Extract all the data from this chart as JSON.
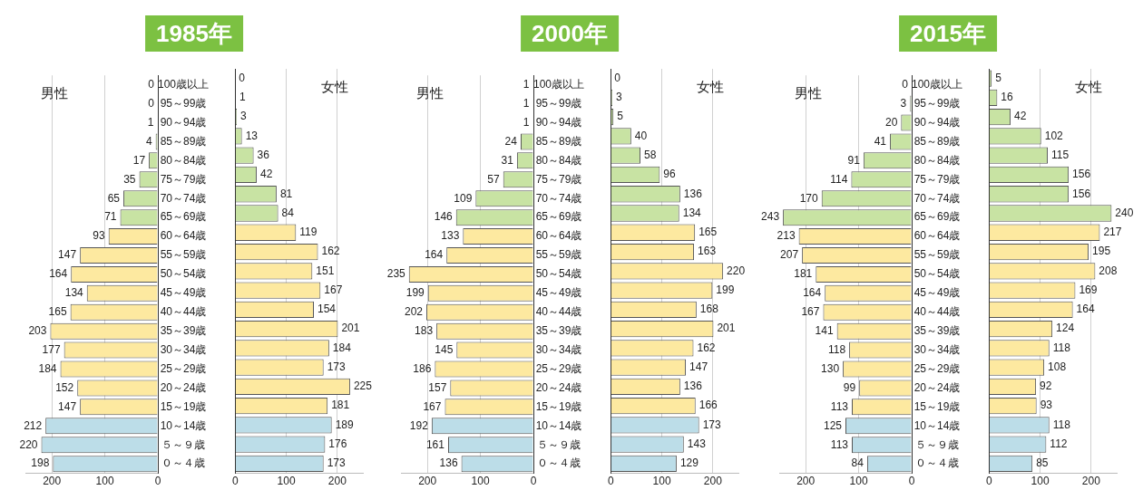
{
  "chart_data": [
    {
      "type": "bar",
      "orientation": "horizontal",
      "title": "1985年",
      "categories": [
        "100歳以上",
        "95～99歳",
        "90～94歳",
        "85～89歳",
        "80～84歳",
        "75～79歳",
        "70～74歳",
        "65～69歳",
        "60～64歳",
        "55～59歳",
        "50～54歳",
        "45～49歳",
        "40～44歳",
        "35～39歳",
        "30～34歳",
        "25～29歳",
        "20～24歳",
        "15～19歳",
        "10～14歳",
        "５～９歳",
        "０～４歳"
      ],
      "series": [
        {
          "name": "男性",
          "values": [
            0,
            0,
            1,
            4,
            17,
            35,
            65,
            71,
            93,
            147,
            164,
            134,
            165,
            203,
            177,
            184,
            152,
            147,
            212,
            220,
            198
          ],
          "colors": [
            "#c8e3a3",
            "#c8e3a3",
            "#c8e3a3",
            "#c8e3a3",
            "#c8e3a3",
            "#c8e3a3",
            "#c8e3a3",
            "#c8e3a3",
            "#fde9a0",
            "#fde9a0",
            "#fde9a0",
            "#fde9a0",
            "#fde9a0",
            "#fde9a0",
            "#fde9a0",
            "#fde9a0",
            "#fde9a0",
            "#fde9a0",
            "#bcdde8",
            "#bcdde8",
            "#bcdde8"
          ]
        }
      ],
      "xlim": [
        250,
        0
      ],
      "xticks": [
        200,
        100,
        0
      ],
      "grid": "x",
      "data_labels": true
    },
    {
      "type": "bar",
      "orientation": "horizontal",
      "categories": [
        null,
        null,
        null,
        null,
        null,
        null,
        null,
        null,
        null,
        null,
        null,
        null,
        null,
        null,
        null,
        null,
        null,
        null,
        null,
        null,
        null
      ],
      "series": [
        {
          "name": "女性",
          "values": [
            0,
            1,
            3,
            13,
            36,
            42,
            81,
            84,
            119,
            162,
            151,
            167,
            154,
            201,
            184,
            173,
            225,
            181,
            189,
            176,
            173
          ],
          "colors": [
            "#c8e3a3",
            "#c8e3a3",
            "#c8e3a3",
            "#c8e3a3",
            "#c8e3a3",
            "#c8e3a3",
            "#c8e3a3",
            "#c8e3a3",
            "#fde9a0",
            "#fde9a0",
            "#fde9a0",
            "#fde9a0",
            "#fde9a0",
            "#fde9a0",
            "#fde9a0",
            "#fde9a0",
            "#fde9a0",
            "#fde9a0",
            "#bcdde8",
            "#bcdde8",
            "#bcdde8"
          ]
        }
      ],
      "xlim": [
        0,
        250
      ],
      "xticks": [
        0,
        100,
        200
      ],
      "grid": "x",
      "data_labels": true,
      "tick_labels": "x"
    },
    {
      "type": "bar",
      "orientation": "horizontal",
      "title": "2000年",
      "categories": [
        "100歳以上",
        "95～99歳",
        "90～94歳",
        "85～89歳",
        "80～84歳",
        "75～79歳",
        "70～74歳",
        "65～69歳",
        "60～64歳",
        "55～59歳",
        "50～54歳",
        "45～49歳",
        "40～44歳",
        "35～39歳",
        "30～34歳",
        "25～29歳",
        "20～24歳",
        "15～19歳",
        "10～14歳",
        "５～９歳",
        "０～４歳"
      ],
      "series": [
        {
          "name": "男性",
          "values": [
            1,
            1,
            1,
            24,
            31,
            57,
            109,
            146,
            133,
            164,
            235,
            199,
            202,
            183,
            145,
            186,
            157,
            167,
            192,
            161,
            136
          ],
          "colors": [
            "#c8e3a3",
            "#c8e3a3",
            "#c8e3a3",
            "#c8e3a3",
            "#c8e3a3",
            "#c8e3a3",
            "#c8e3a3",
            "#c8e3a3",
            "#fde9a0",
            "#fde9a0",
            "#fde9a0",
            "#fde9a0",
            "#fde9a0",
            "#fde9a0",
            "#fde9a0",
            "#fde9a0",
            "#fde9a0",
            "#fde9a0",
            "#bcdde8",
            "#bcdde8",
            "#bcdde8"
          ]
        }
      ],
      "xlim": [
        250,
        0
      ],
      "xticks": [
        200,
        100,
        0
      ],
      "grid": "x",
      "data_labels": true
    },
    {
      "type": "bar",
      "orientation": "horizontal",
      "categories": [
        null,
        null,
        null,
        null,
        null,
        null,
        null,
        null,
        null,
        null,
        null,
        null,
        null,
        null,
        null,
        null,
        null,
        null,
        null,
        null,
        null
      ],
      "series": [
        {
          "name": "女性",
          "values": [
            0,
            3,
            5,
            40,
            58,
            96,
            136,
            134,
            165,
            163,
            220,
            199,
            168,
            201,
            162,
            147,
            136,
            166,
            173,
            143,
            129
          ],
          "colors": [
            "#c8e3a3",
            "#c8e3a3",
            "#c8e3a3",
            "#c8e3a3",
            "#c8e3a3",
            "#c8e3a3",
            "#c8e3a3",
            "#c8e3a3",
            "#fde9a0",
            "#fde9a0",
            "#fde9a0",
            "#fde9a0",
            "#fde9a0",
            "#fde9a0",
            "#fde9a0",
            "#fde9a0",
            "#fde9a0",
            "#fde9a0",
            "#bcdde8",
            "#bcdde8",
            "#bcdde8"
          ]
        }
      ],
      "xlim": [
        0,
        250
      ],
      "xticks": [
        0,
        100,
        200
      ],
      "grid": "x",
      "data_labels": true,
      "tick_labels": "x"
    },
    {
      "type": "bar",
      "orientation": "horizontal",
      "title": "2015年",
      "categories": [
        "100歳以上",
        "95～99歳",
        "90～94歳",
        "85～89歳",
        "80～84歳",
        "75～79歳",
        "70～74歳",
        "65～69歳",
        "60～64歳",
        "55～59歳",
        "50～54歳",
        "45～49歳",
        "40～44歳",
        "35～39歳",
        "30～34歳",
        "25～29歳",
        "20～24歳",
        "15～19歳",
        "10～14歳",
        "５～９歳",
        "０～４歳"
      ],
      "series": [
        {
          "name": "男性",
          "values": [
            0,
            3,
            20,
            41,
            91,
            114,
            170,
            243,
            213,
            207,
            181,
            164,
            167,
            141,
            118,
            130,
            99,
            113,
            125,
            113,
            84
          ],
          "colors": [
            "#c8e3a3",
            "#c8e3a3",
            "#c8e3a3",
            "#c8e3a3",
            "#c8e3a3",
            "#c8e3a3",
            "#c8e3a3",
            "#c8e3a3",
            "#fde9a0",
            "#fde9a0",
            "#fde9a0",
            "#fde9a0",
            "#fde9a0",
            "#fde9a0",
            "#fde9a0",
            "#fde9a0",
            "#fde9a0",
            "#fde9a0",
            "#bcdde8",
            "#bcdde8",
            "#bcdde8"
          ]
        }
      ],
      "xlim": [
        250,
        0
      ],
      "xticks": [
        200,
        100,
        0
      ],
      "grid": "x",
      "data_labels": true
    },
    {
      "type": "bar",
      "orientation": "horizontal",
      "categories": [
        null,
        null,
        null,
        null,
        null,
        null,
        null,
        null,
        null,
        null,
        null,
        null,
        null,
        null,
        null,
        null,
        null,
        null,
        null,
        null,
        null
      ],
      "series": [
        {
          "name": "女性",
          "values": [
            5,
            16,
            42,
            102,
            115,
            156,
            156,
            240,
            217,
            195,
            208,
            169,
            164,
            124,
            118,
            108,
            92,
            93,
            118,
            112,
            85
          ],
          "colors": [
            "#c8e3a3",
            "#c8e3a3",
            "#c8e3a3",
            "#c8e3a3",
            "#c8e3a3",
            "#c8e3a3",
            "#c8e3a3",
            "#c8e3a3",
            "#fde9a0",
            "#fde9a0",
            "#fde9a0",
            "#fde9a0",
            "#fde9a0",
            "#fde9a0",
            "#fde9a0",
            "#fde9a0",
            "#fde9a0",
            "#fde9a0",
            "#bcdde8",
            "#bcdde8",
            "#bcdde8"
          ]
        }
      ],
      "xlim": [
        0,
        250
      ],
      "xticks": [
        0,
        100,
        200
      ],
      "grid": "x",
      "data_labels": true,
      "tick_labels": "x"
    }
  ]
}
